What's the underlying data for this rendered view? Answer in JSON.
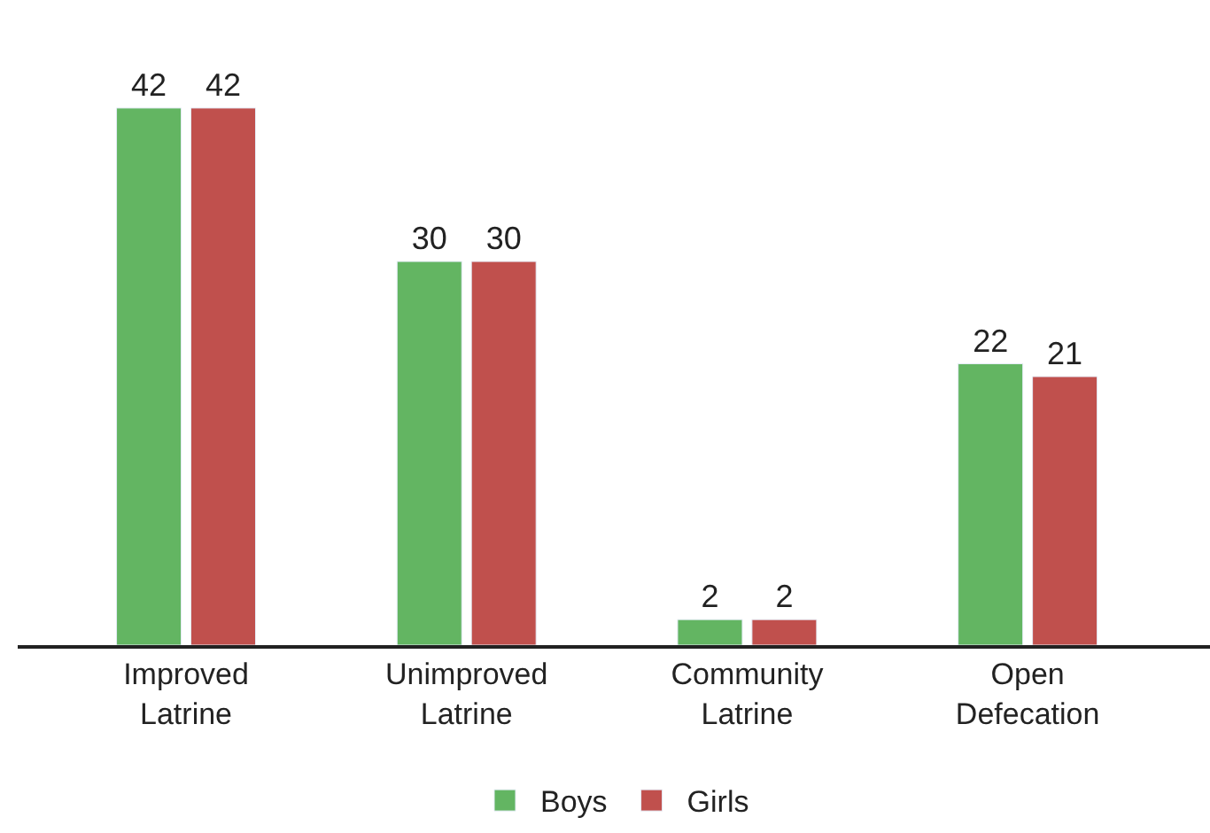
{
  "chart_data": {
    "type": "bar",
    "categories": [
      "Improved\nLatrine",
      "Unimproved\nLatrine",
      "Community\nLatrine",
      "Open\nDefecation"
    ],
    "series": [
      {
        "name": "Boys",
        "color": "#63b562",
        "values": [
          42,
          30,
          2,
          22
        ]
      },
      {
        "name": "Girls",
        "color": "#c0504d",
        "values": [
          42,
          30,
          2,
          21
        ]
      }
    ],
    "data_labels": true,
    "legend": "bottom"
  }
}
